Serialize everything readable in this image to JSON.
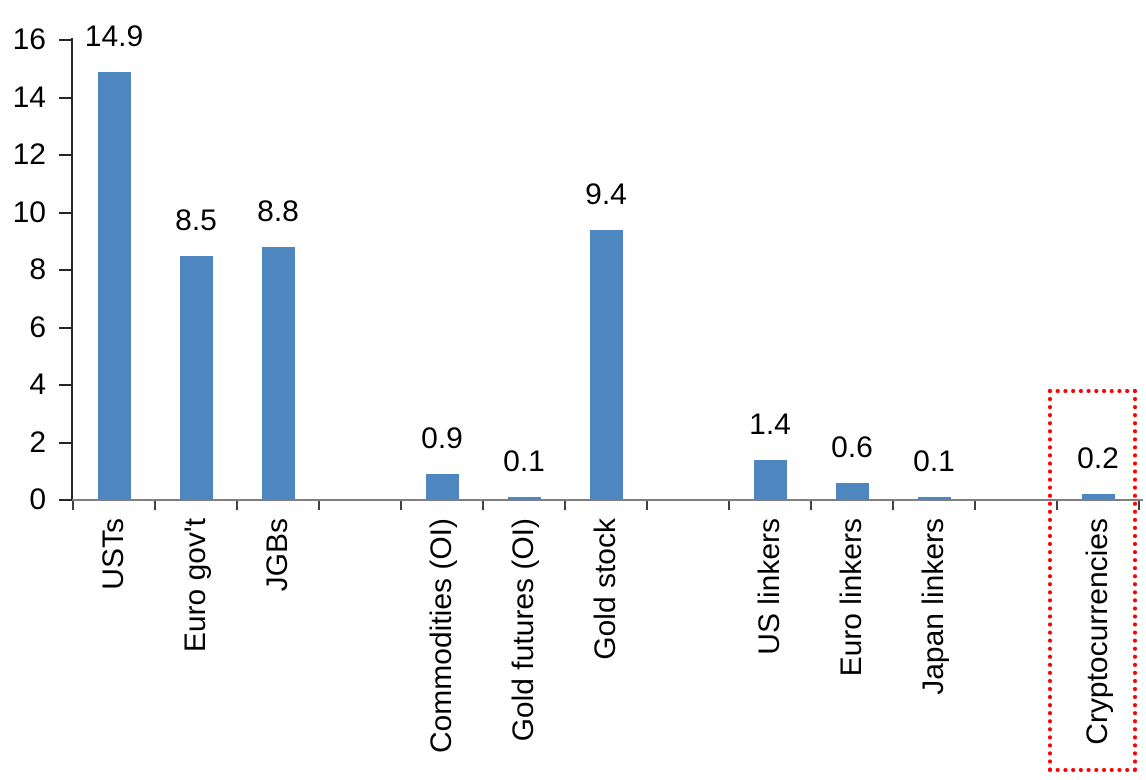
{
  "chart_data": {
    "type": "bar",
    "title": "",
    "xlabel": "",
    "ylabel": "",
    "ylim": [
      0,
      16
    ],
    "yticks": [
      0,
      2,
      4,
      6,
      8,
      10,
      12,
      14,
      16
    ],
    "grid": false,
    "legend": false,
    "bar_color": "#4E86C0",
    "highlight_color": "#FF0000",
    "highlight_style": "dotted-rectangle",
    "total_slots": 13,
    "items": [
      {
        "label": "USTs",
        "value": 14.9,
        "value_label": "14.9",
        "slot": 0,
        "highlighted": false
      },
      {
        "label": "Euro gov't",
        "value": 8.5,
        "value_label": "8.5",
        "slot": 1,
        "highlighted": false
      },
      {
        "label": "JGBs",
        "value": 8.8,
        "value_label": "8.8",
        "slot": 2,
        "highlighted": false
      },
      {
        "label": "Commodities (OI)",
        "value": 0.9,
        "value_label": "0.9",
        "slot": 4,
        "highlighted": false
      },
      {
        "label": "Gold futures (OI)",
        "value": 0.1,
        "value_label": "0.1",
        "slot": 5,
        "highlighted": false
      },
      {
        "label": "Gold stock",
        "value": 9.4,
        "value_label": "9.4",
        "slot": 6,
        "highlighted": false
      },
      {
        "label": "US linkers",
        "value": 1.4,
        "value_label": "1.4",
        "slot": 8,
        "highlighted": false
      },
      {
        "label": "Euro linkers",
        "value": 0.6,
        "value_label": "0.6",
        "slot": 9,
        "highlighted": false
      },
      {
        "label": "Japan linkers",
        "value": 0.1,
        "value_label": "0.1",
        "slot": 10,
        "highlighted": false
      },
      {
        "label": "Cryptocurrencies",
        "value": 0.2,
        "value_label": "0.2",
        "slot": 12,
        "highlighted": true
      }
    ]
  }
}
